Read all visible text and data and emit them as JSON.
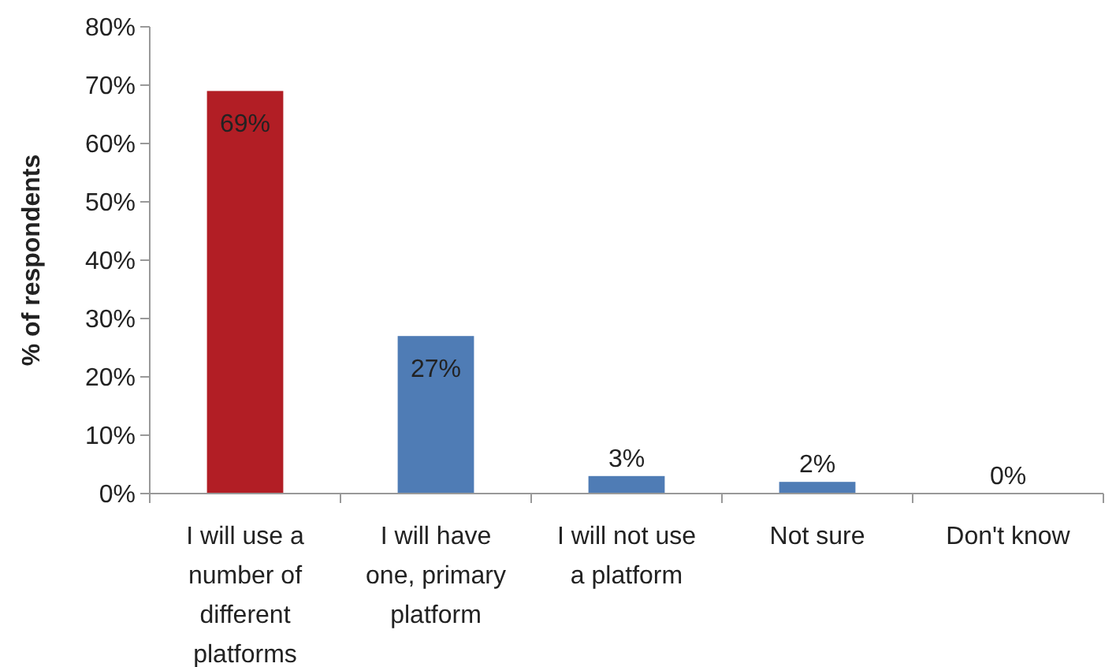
{
  "chart_data": {
    "type": "bar",
    "ylabel": "% of respondents",
    "categories": [
      "I will use a number of different platforms",
      "I will have one, primary platform",
      "I will not use a platform",
      "Not sure",
      "Don't know"
    ],
    "values": [
      69,
      27,
      3,
      2,
      0
    ],
    "colors": [
      "#b21e25",
      "#4f7cb5",
      "#4f7cb5",
      "#4f7cb5",
      "#4f7cb5"
    ],
    "value_labels": [
      "69%",
      "27%",
      "3%",
      "2%",
      "0%"
    ],
    "ylim": [
      0,
      80
    ],
    "yticks": [
      {
        "value": 0,
        "label": "0%"
      },
      {
        "value": 10,
        "label": "10%"
      },
      {
        "value": 20,
        "label": "20%"
      },
      {
        "value": 30,
        "label": "30%"
      },
      {
        "value": 40,
        "label": "40%"
      },
      {
        "value": 50,
        "label": "50%"
      },
      {
        "value": 60,
        "label": "60%"
      },
      {
        "value": 70,
        "label": "70%"
      },
      {
        "value": 80,
        "label": "80%"
      }
    ],
    "grid": false
  }
}
